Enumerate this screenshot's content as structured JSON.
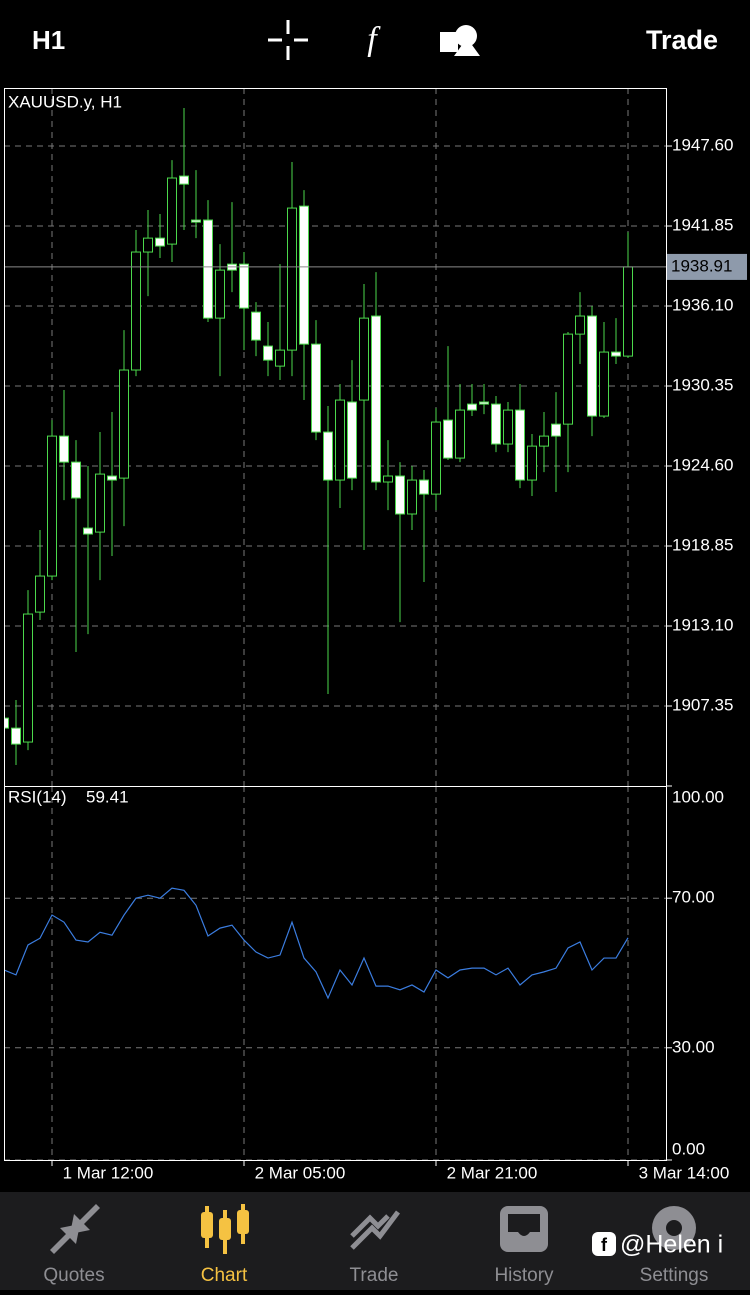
{
  "header": {
    "timeframe": "H1",
    "action": "Trade"
  },
  "chart_data": [
    {
      "type": "candlestick",
      "title": "XAUUSD.y, H1",
      "categories": [
        null,
        null,
        null,
        null,
        "1 Mar 12:00",
        null,
        null,
        null,
        null,
        null,
        null,
        null,
        null,
        null,
        null,
        null,
        null,
        null,
        null,
        null,
        "2 Mar 05:00",
        null,
        null,
        null,
        null,
        null,
        null,
        null,
        null,
        null,
        null,
        null,
        null,
        null,
        null,
        null,
        "2 Mar 21:00",
        null,
        null,
        null,
        null,
        null,
        null,
        null,
        null,
        null,
        null,
        null,
        null,
        null,
        null,
        null,
        "3 Mar 14:00"
      ],
      "open": [
        1906.48,
        1905.76,
        1904.76,
        1914.1,
        1916.69,
        1926.75,
        1924.88,
        1920.14,
        1919.85,
        1923.88,
        1923.73,
        1931.5,
        1939.98,
        1940.98,
        1940.55,
        1945.44,
        1942.28,
        1942.28,
        1935.23,
        1939.11,
        1939.11,
        1935.66,
        1933.22,
        1931.78,
        1932.93,
        1943.28,
        1933.36,
        1927.04,
        1923.59,
        1929.2,
        1929.34,
        1935.38,
        1923.45,
        1923.88,
        1921.15,
        1923.59,
        1922.58,
        1927.9,
        1925.17,
        1929.05,
        1929.2,
        1929.05,
        1926.18,
        1928.62,
        1923.59,
        1926.03,
        1927.61,
        1927.61,
        1934.08,
        1935.38,
        1928.19,
        1932.79,
        1932.5
      ],
      "high": [
        1907.78,
        1907.78,
        1915.68,
        1920.0,
        1927.9,
        1930.06,
        1926.46,
        1924.6,
        1927.04,
        1928.48,
        1934.37,
        1941.56,
        1943.0,
        1942.71,
        1946.59,
        1950.33,
        1945.87,
        1943.71,
        1940.55,
        1943.57,
        1939.98,
        1936.38,
        1934.95,
        1939.11,
        1946.45,
        1944.43,
        1935.09,
        1928.91,
        1930.49,
        1932.21,
        1937.68,
        1938.54,
        1926.46,
        1924.88,
        1924.6,
        1924.31,
        1928.76,
        1933.22,
        1930.49,
        1930.49,
        1930.49,
        1929.63,
        1929.2,
        1930.49,
        1926.9,
        1928.48,
        1929.91,
        1934.23,
        1937.1,
        1936.1,
        1934.95,
        1935.23,
        1941.41
      ],
      "low": [
        1903.61,
        1903.11,
        1904.18,
        1913.53,
        1916.4,
        1922.15,
        1911.23,
        1912.52,
        1916.4,
        1918.13,
        1920.28,
        1931.06,
        1936.81,
        1939.55,
        1939.26,
        1941.56,
        1940.98,
        1934.95,
        1931.06,
        1937.1,
        1932.93,
        1932.5,
        1931.06,
        1930.78,
        1931.06,
        1929.34,
        1926.46,
        1908.21,
        1921.58,
        1922.87,
        1918.56,
        1922.87,
        1921.43,
        1913.38,
        1920.0,
        1916.26,
        1921.43,
        1925.03,
        1924.88,
        1928.19,
        1928.33,
        1925.6,
        1925.6,
        1923.01,
        1922.44,
        1924.16,
        1922.73,
        1924.16,
        1931.93,
        1926.75,
        1928.05,
        1931.93,
        1932.36
      ],
      "close": [
        1905.76,
        1904.61,
        1913.96,
        1916.69,
        1926.75,
        1924.88,
        1922.3,
        1919.71,
        1924.02,
        1923.59,
        1931.5,
        1939.98,
        1940.98,
        1940.41,
        1945.3,
        1944.86,
        1942.13,
        1935.23,
        1938.68,
        1938.68,
        1935.95,
        1933.65,
        1932.21,
        1932.93,
        1943.14,
        1933.36,
        1927.04,
        1923.59,
        1929.34,
        1923.73,
        1935.23,
        1923.45,
        1923.88,
        1921.15,
        1923.59,
        1922.58,
        1927.76,
        1925.17,
        1928.62,
        1928.62,
        1929.05,
        1926.18,
        1928.62,
        1923.59,
        1926.03,
        1926.75,
        1926.75,
        1934.08,
        1935.38,
        1928.19,
        1932.79,
        1932.5,
        1938.91
      ],
      "up_color": "#000000",
      "down_color": "#ffffff",
      "wick_color": "#4cd94c",
      "ylim": [
        1901.6,
        1951.77
      ],
      "yticks": [
        {
          "value": 1947.6,
          "label": "1947.60"
        },
        {
          "value": 1941.85,
          "label": "1941.85"
        },
        {
          "value": 1936.1,
          "label": "1936.10"
        },
        {
          "value": 1930.35,
          "label": "1930.35"
        },
        {
          "value": 1924.6,
          "label": "1924.60"
        },
        {
          "value": 1918.85,
          "label": "1918.85"
        },
        {
          "value": 1913.1,
          "label": "1913.10"
        },
        {
          "value": 1907.35,
          "label": "1907.35"
        }
      ],
      "grid": true
    },
    {
      "type": "line",
      "title": "RSI(14)",
      "color": "#3b7de0",
      "values": [
        50.8,
        49.5,
        57.5,
        59.3,
        65.5,
        63.6,
        58.8,
        58.3,
        60.9,
        60.1,
        65.5,
        70,
        70.8,
        70,
        72.7,
        72.1,
        68.1,
        59.9,
        62,
        62.8,
        58.8,
        55.6,
        54,
        54.8,
        63.6,
        54,
        50.3,
        43.3,
        50.8,
        46.8,
        54,
        46.5,
        46.5,
        45.5,
        46.8,
        44.9,
        50.8,
        48.7,
        50.8,
        51.3,
        51.3,
        49.5,
        51.3,
        46.8,
        49.5,
        50.3,
        51.3,
        56.7,
        58.3,
        50.8,
        54,
        54,
        59.41
      ],
      "ylim": [
        0,
        100
      ],
      "yticks": [
        {
          "value": 100,
          "label": "100.00"
        },
        {
          "value": 70,
          "label": "70.00"
        },
        {
          "value": 30,
          "label": "30.00"
        },
        {
          "value": 0,
          "label": "0.00"
        }
      ],
      "grid": true
    }
  ],
  "tabs": [
    "Quotes",
    "Chart",
    "Trade",
    "History",
    "Settings"
  ],
  "active_tab": "Chart",
  "watermark": "@Helen i"
}
